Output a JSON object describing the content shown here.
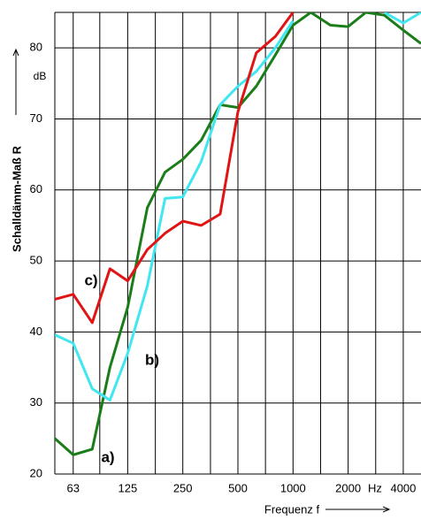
{
  "chart_data": {
    "type": "line",
    "y_label": "Schalldämm-Maß R",
    "y_unit": "dB",
    "x_label": "Frequenz f",
    "x_unit": "Hz",
    "x": [
      50,
      63,
      80,
      100,
      125,
      160,
      200,
      250,
      315,
      400,
      500,
      630,
      800,
      1000,
      1250,
      1600,
      2000,
      2500,
      3150,
      4000,
      5000
    ],
    "xlim": [
      50,
      5000
    ],
    "xscale": "log",
    "xticks": [
      63,
      125,
      250,
      500,
      1000,
      2000,
      4000
    ],
    "xgrid": [
      63,
      88,
      125,
      177,
      250,
      354,
      500,
      707,
      1000,
      1414,
      2000,
      2828,
      4000
    ],
    "ylim": [
      20,
      85
    ],
    "yticks": [
      20,
      30,
      40,
      50,
      60,
      70,
      80
    ],
    "grid": true,
    "series": [
      {
        "name": "a)",
        "color": "#1a7d1a",
        "values": [
          25,
          22.7,
          23.5,
          35,
          43.5,
          57.5,
          62.5,
          64.3,
          67,
          72,
          71.6,
          74.6,
          79,
          83.2,
          85,
          83.2,
          83,
          85,
          84.6,
          82.5,
          80.6
        ]
      },
      {
        "name": "b)",
        "color": "#40e6f0",
        "values": [
          39.6,
          38.4,
          32,
          30.4,
          37,
          46.5,
          58.8,
          59,
          64,
          72,
          74.6,
          76.7,
          80,
          83.8,
          null,
          null,
          null,
          null,
          85,
          83.5,
          85
        ]
      },
      {
        "name": "c)",
        "color": "#e01414",
        "values": [
          44.6,
          45.3,
          41.3,
          48.9,
          47.2,
          51.6,
          53.9,
          55.6,
          55,
          56.6,
          71,
          79.3,
          81.6,
          85,
          null,
          null,
          null,
          null,
          null,
          null,
          null
        ]
      }
    ]
  }
}
